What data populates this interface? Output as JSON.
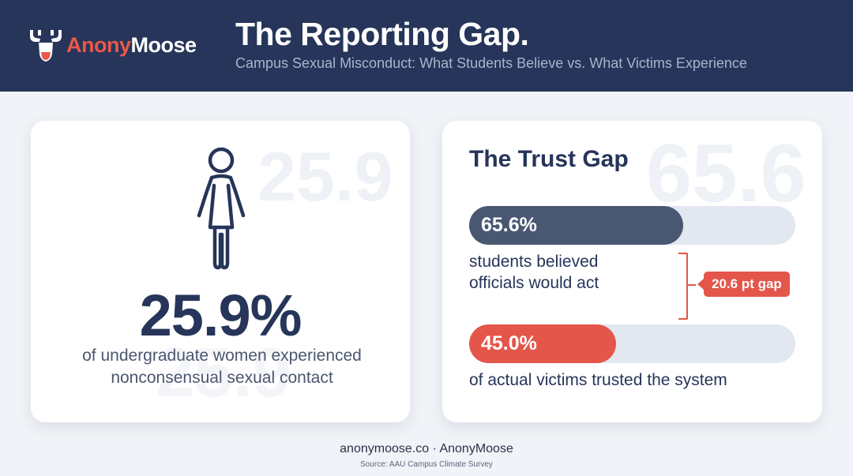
{
  "header": {
    "brand_part1": "Anony",
    "brand_part2": "Moose",
    "title": "The Reporting Gap.",
    "subtitle": "Campus Sexual Misconduct: What Students Believe vs. What Victims Experience"
  },
  "stat_card": {
    "ghost_value": "25.9",
    "value": "25.9%",
    "description_line1": "of undergraduate women experienced",
    "description_line2": "nonconsensual sexual contact",
    "icon": "woman-icon"
  },
  "trust_card": {
    "title": "The Trust Gap",
    "ghost_value": "65.6",
    "bars": [
      {
        "label": "65.6%",
        "value": 65.6,
        "caption_line1": "students believed",
        "caption_line2": "officials would act"
      },
      {
        "label": "45.0%",
        "value": 45.0,
        "caption_line1": "of actual victims trusted the system",
        "caption_line2": ""
      }
    ],
    "gap_label": "20.6 pt gap"
  },
  "footer": {
    "link": "anonymoose.co · AnonyMoose",
    "source": "Source: AAU Campus Climate Survey"
  },
  "colors": {
    "navy": "#263559",
    "accent": "#e4564a",
    "bar_dark": "#495773",
    "track": "#e2e7f0"
  }
}
